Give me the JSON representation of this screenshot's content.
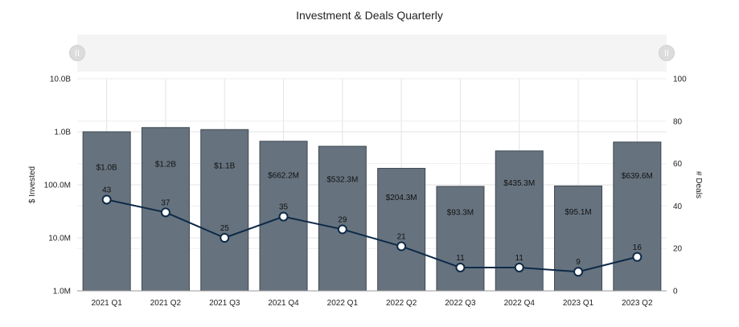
{
  "chart_data": {
    "type": "bar",
    "title": "Investment & Deals Quarterly",
    "categories": [
      "2021 Q1",
      "2021 Q2",
      "2021 Q3",
      "2021 Q4",
      "2022 Q1",
      "2022 Q2",
      "2022 Q3",
      "2022 Q4",
      "2023 Q1",
      "2023 Q2"
    ],
    "series": [
      {
        "type": "bar",
        "axis": "left",
        "values": [
          1000000000,
          1200000000,
          1100000000,
          662200000,
          532300000,
          204300000,
          93300000,
          435300000,
          95100000,
          639600000
        ],
        "labels": [
          "$1.0B",
          "$1.2B",
          "$1.1B",
          "$662.2M",
          "$532.3M",
          "$204.3M",
          "$93.3M",
          "$435.3M",
          "$95.1M",
          "$639.6M"
        ],
        "color": "#66737f"
      },
      {
        "type": "line",
        "axis": "right",
        "values": [
          43,
          37,
          25,
          35,
          29,
          21,
          11,
          11,
          9,
          16
        ],
        "color": "#0e2a47"
      }
    ],
    "y_left": {
      "label": "$ Invested",
      "scale": "log",
      "range": [
        1000000,
        10000000000
      ],
      "ticks": [
        1000000,
        10000000,
        100000000,
        1000000000,
        10000000000
      ],
      "tick_labels": [
        "1.0M",
        "10.0M",
        "100.0M",
        "1.0B",
        "10.0B"
      ]
    },
    "y_right": {
      "label": "# Deals",
      "scale": "linear",
      "range": [
        0,
        100
      ],
      "ticks": [
        0,
        20,
        40,
        60,
        80,
        100
      ],
      "tick_labels": [
        "0",
        "20",
        "40",
        "60",
        "80",
        "100"
      ]
    },
    "grid": true,
    "legend": "none"
  }
}
